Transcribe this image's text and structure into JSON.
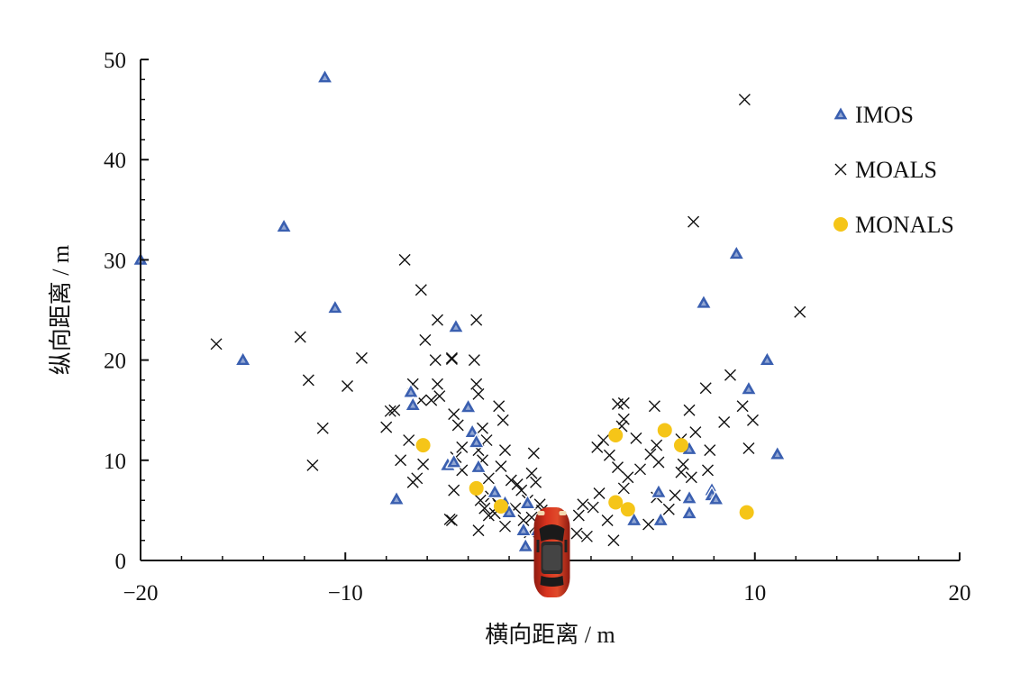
{
  "chart_data": {
    "type": "scatter",
    "xlabel": "横向距离 / m",
    "ylabel": "纵向距离 / m",
    "xlim": [
      -20,
      20
    ],
    "ylim": [
      0,
      50
    ],
    "x_ticks": [
      -20,
      -10,
      0,
      10,
      20
    ],
    "x_tick_labels": [
      "−20",
      "−10",
      "",
      "10",
      "20"
    ],
    "y_ticks": [
      0,
      10,
      20,
      30,
      40,
      50
    ],
    "y_tick_labels": [
      "0",
      "10",
      "20",
      "30",
      "40",
      "50"
    ],
    "grid": false,
    "legend_position": "top-right",
    "ego_vehicle_icon": "red-car-top-view",
    "series": [
      {
        "name": "IMOS",
        "marker": "triangle",
        "color": "#3a5fb0",
        "points": [
          [
            -20,
            30
          ],
          [
            -11,
            48.2
          ],
          [
            -13,
            33.3
          ],
          [
            -10.5,
            25.2
          ],
          [
            -15,
            20
          ],
          [
            -7.5,
            6.1
          ],
          [
            -6.8,
            16.8
          ],
          [
            -6.7,
            15.5
          ],
          [
            -4.6,
            23.3
          ],
          [
            -4,
            15.3
          ],
          [
            -3.8,
            12.8
          ],
          [
            -3.6,
            11.8
          ],
          [
            -3.5,
            9.3
          ],
          [
            -5,
            9.5
          ],
          [
            -4.7,
            9.8
          ],
          [
            -2.7,
            6.8
          ],
          [
            -2.2,
            5.7
          ],
          [
            -2,
            4.8
          ],
          [
            -1.1,
            5.7
          ],
          [
            -1.3,
            3
          ],
          [
            -1.2,
            1.4
          ],
          [
            -0.6,
            3
          ],
          [
            0.1,
            3
          ],
          [
            7.5,
            25.7
          ],
          [
            9.1,
            30.6
          ],
          [
            10.6,
            20
          ],
          [
            9.7,
            17.1
          ],
          [
            11.1,
            10.6
          ],
          [
            6.8,
            11.1
          ],
          [
            6.8,
            6.2
          ],
          [
            6.8,
            4.7
          ],
          [
            7.9,
            7
          ],
          [
            7.9,
            6.5
          ],
          [
            8.1,
            6.1
          ],
          [
            5.3,
            6.8
          ],
          [
            5.4,
            4
          ],
          [
            4.1,
            4
          ]
        ]
      },
      {
        "name": "MOALS",
        "marker": "x",
        "color": "#111111",
        "points": [
          [
            -16.3,
            21.6
          ],
          [
            -12.2,
            22.3
          ],
          [
            -11.8,
            18
          ],
          [
            -11.1,
            13.2
          ],
          [
            -11.6,
            9.5
          ],
          [
            -9.2,
            20.2
          ],
          [
            -9.9,
            17.4
          ],
          [
            -7.1,
            30
          ],
          [
            -6.3,
            27
          ],
          [
            -6.1,
            22
          ],
          [
            -5.5,
            24
          ],
          [
            -5.6,
            20
          ],
          [
            -5.5,
            17.6
          ],
          [
            -5.4,
            16.4
          ],
          [
            -5.8,
            16
          ],
          [
            -8,
            13.3
          ],
          [
            -7.8,
            14.9
          ],
          [
            -7.6,
            15
          ],
          [
            -6.7,
            17.6
          ],
          [
            -7.3,
            10
          ],
          [
            -6.3,
            16
          ],
          [
            -6.9,
            12
          ],
          [
            -6.2,
            9.6
          ],
          [
            -6.5,
            8.2
          ],
          [
            -6.7,
            7.8
          ],
          [
            -4.8,
            20.1
          ],
          [
            -4.8,
            20.2
          ],
          [
            -4.7,
            14.6
          ],
          [
            -4.5,
            13.5
          ],
          [
            -4.3,
            11.3
          ],
          [
            -4.6,
            10.3
          ],
          [
            -4.3,
            9
          ],
          [
            -4.7,
            7
          ],
          [
            -4.8,
            4
          ],
          [
            -4.9,
            4.1
          ],
          [
            -3.6,
            24
          ],
          [
            -3.7,
            20
          ],
          [
            -3.6,
            17.6
          ],
          [
            -3.5,
            16.6
          ],
          [
            -3.3,
            13.2
          ],
          [
            -3.1,
            12
          ],
          [
            -3.5,
            11
          ],
          [
            -3.3,
            10
          ],
          [
            -3,
            8.2
          ],
          [
            -3.4,
            6
          ],
          [
            -3.2,
            5.2
          ],
          [
            -3.5,
            3
          ],
          [
            -2.5,
            15.4
          ],
          [
            -2.3,
            14
          ],
          [
            -2.2,
            11
          ],
          [
            -2.4,
            9.4
          ],
          [
            -1.9,
            8
          ],
          [
            -1.6,
            7.6
          ],
          [
            -1.4,
            7
          ],
          [
            -1.1,
            6
          ],
          [
            -0.8,
            10.7
          ],
          [
            -0.9,
            8.7
          ],
          [
            -0.7,
            7.8
          ],
          [
            -0.5,
            5.6
          ],
          [
            -0.9,
            4.3
          ],
          [
            -1.3,
            4
          ],
          [
            -0.4,
            5
          ],
          [
            -0.4,
            3.4
          ],
          [
            -1.7,
            5.2
          ],
          [
            -2.5,
            5.5
          ],
          [
            -2.9,
            6.4
          ],
          [
            -2.7,
            4.7
          ],
          [
            -3,
            4.5
          ],
          [
            -1,
            2.8
          ],
          [
            -2.2,
            3.4
          ],
          [
            1.3,
            2.7
          ],
          [
            1.8,
            2.4
          ],
          [
            1.4,
            4.5
          ],
          [
            1.6,
            5.6
          ],
          [
            2.1,
            5.3
          ],
          [
            2.4,
            6.7
          ],
          [
            2.8,
            4
          ],
          [
            3.1,
            2
          ],
          [
            2.3,
            11.3
          ],
          [
            2.6,
            12
          ],
          [
            2.9,
            10.5
          ],
          [
            3.3,
            9.3
          ],
          [
            3.8,
            8.3
          ],
          [
            3.5,
            13.4
          ],
          [
            3.3,
            15.6
          ],
          [
            3.6,
            15.7
          ],
          [
            3.6,
            14.1
          ],
          [
            4.2,
            12.2
          ],
          [
            4.4,
            9.1
          ],
          [
            4.9,
            10.6
          ],
          [
            5.1,
            15.4
          ],
          [
            5.2,
            11.5
          ],
          [
            5.3,
            9.8
          ],
          [
            5.2,
            6.3
          ],
          [
            3.6,
            7.2
          ],
          [
            5.8,
            5.1
          ],
          [
            6.1,
            6.5
          ],
          [
            6.4,
            8.8
          ],
          [
            6.5,
            9.6
          ],
          [
            6.4,
            12.1
          ],
          [
            6.8,
            15
          ],
          [
            7.1,
            12.8
          ],
          [
            6.9,
            8.3
          ],
          [
            7.8,
            11
          ],
          [
            7.7,
            9
          ],
          [
            7.6,
            17.2
          ],
          [
            7,
            33.8
          ],
          [
            9.5,
            46
          ],
          [
            8.8,
            18.5
          ],
          [
            9.4,
            15.4
          ],
          [
            8.5,
            13.8
          ],
          [
            9.9,
            14
          ],
          [
            9.7,
            11.2
          ],
          [
            12.2,
            24.8
          ],
          [
            4.8,
            3.6
          ]
        ]
      },
      {
        "name": "MONALS",
        "marker": "circle",
        "color": "#f5c518",
        "points": [
          [
            -6.2,
            11.5
          ],
          [
            -3.6,
            7.2
          ],
          [
            -2.4,
            5.4
          ],
          [
            3.2,
            12.5
          ],
          [
            3.2,
            5.8
          ],
          [
            3.8,
            5.1
          ],
          [
            5.6,
            13
          ],
          [
            6.4,
            11.5
          ],
          [
            9.6,
            4.8
          ]
        ]
      }
    ]
  }
}
